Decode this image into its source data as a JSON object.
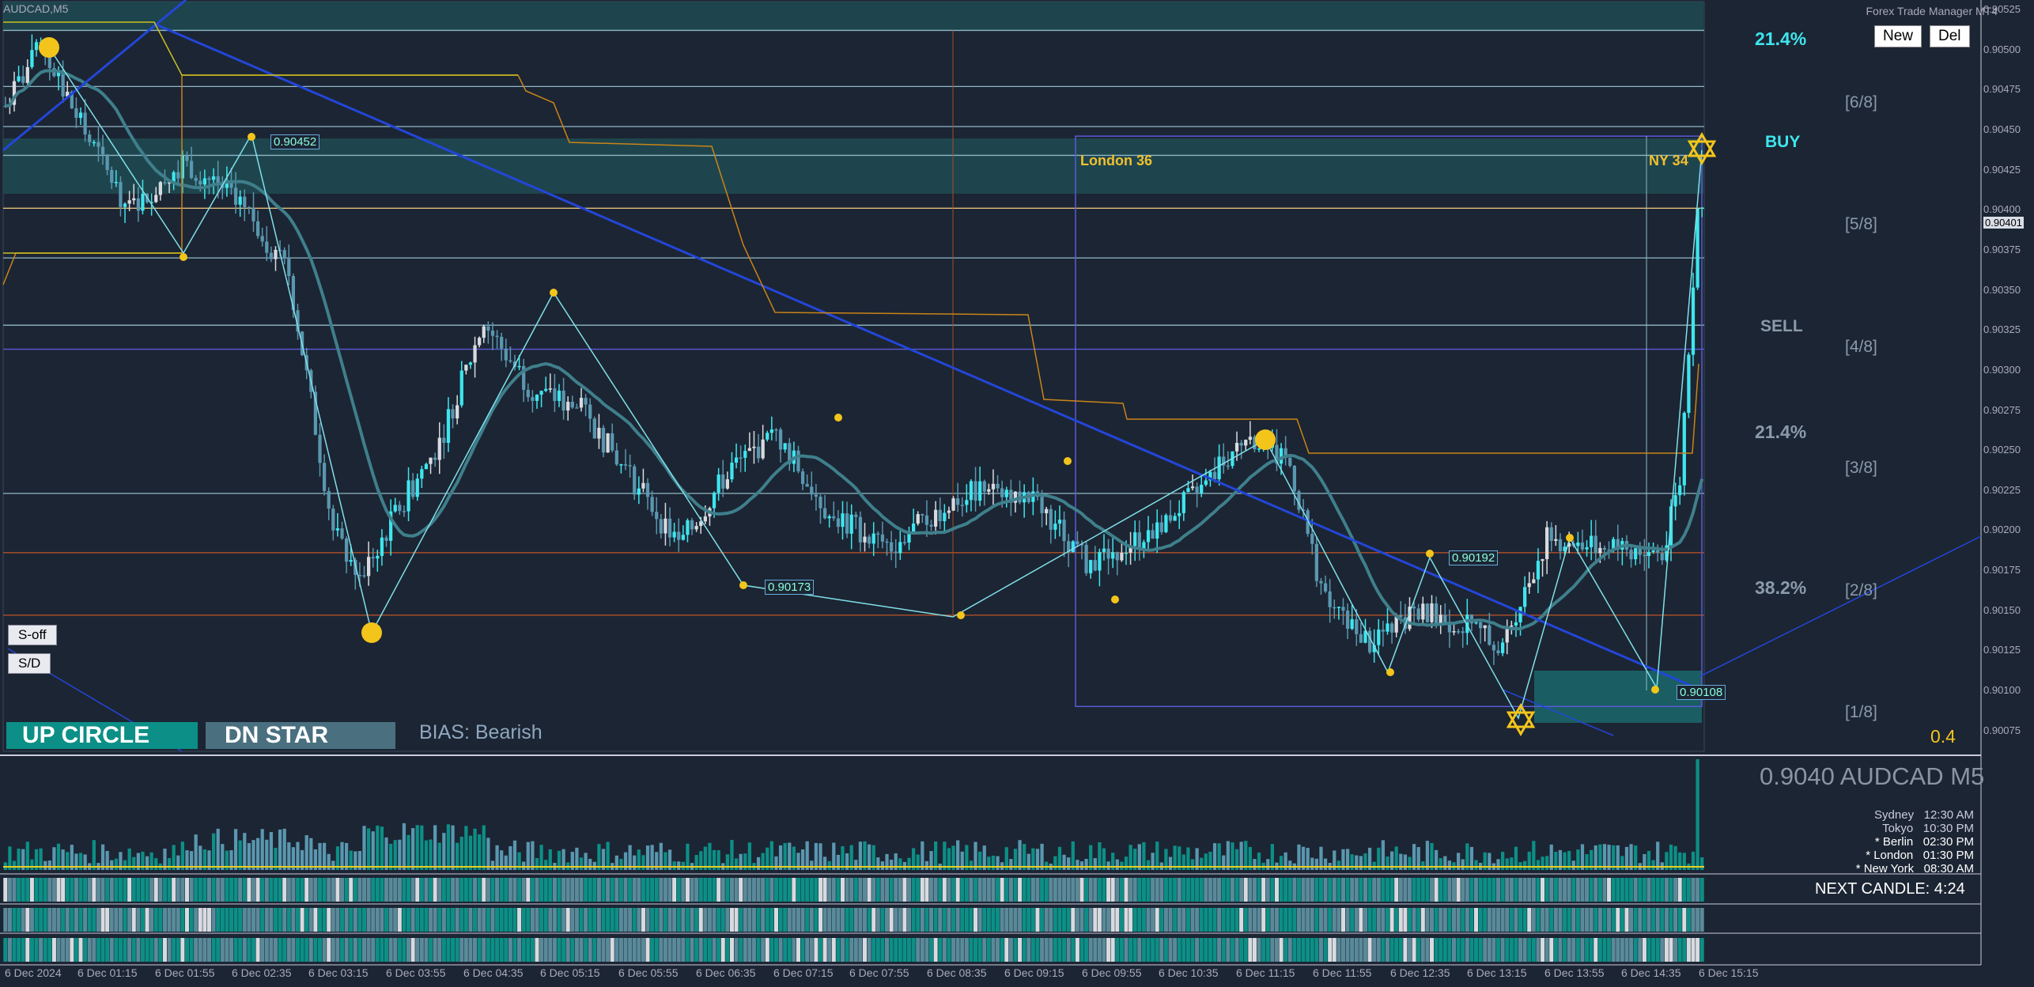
{
  "window": {
    "symbol_title": "AUDCAD,M5",
    "ftm_title": "Forex Trade Manager MT4"
  },
  "buttons": {
    "new": "New",
    "del": "Del",
    "s_off": "S-off",
    "s_d": "S/D"
  },
  "signals": {
    "up": "UP CIRCLE",
    "dn": "DN STAR",
    "bias": "BIAS: Bearish"
  },
  "sessions": {
    "london": "London 36",
    "ny": "NY 34"
  },
  "zones": {
    "pct_top": "21.4%",
    "buy": "BUY",
    "sell": "SELL",
    "pct_mid": "21.4%",
    "pct_low": "38.2%",
    "ratio": "0.4"
  },
  "fib_levels": [
    "[6/8]",
    "[5/8]",
    "[4/8]",
    "[3/8]",
    "[2/8]",
    "[1/8]"
  ],
  "price_tags": [
    "0.90452",
    "0.90173",
    "0.90192",
    "0.90108"
  ],
  "info": {
    "price_symbol": "0.9040 AUDCAD M5",
    "next_candle": "NEXT CANDLE: 4:24",
    "timezones": [
      {
        "city": "Sydney",
        "time": "12:30 AM"
      },
      {
        "city": "Tokyo",
        "time": "10:30 PM"
      },
      {
        "city": "* Berlin",
        "time": "02:30 PM"
      },
      {
        "city": "* London",
        "time": "01:30 PM"
      },
      {
        "city": "* New York",
        "time": "08:30 AM"
      }
    ]
  },
  "current_price": "0.90401",
  "colors": {
    "bull": "#3ee6ee",
    "bear": "#5a97b0",
    "white_candle": "#d7dbe0",
    "ma": "#3f7f8c",
    "trend": "#2346d8",
    "gold": "#f3c51b",
    "orange": "#c98418",
    "zone": "#1f4d54",
    "accent": "#0c8f86"
  },
  "chart_data": {
    "type": "candlestick",
    "symbol": "AUDCAD",
    "timeframe": "M5",
    "y_ticks": [
      "0.90525",
      "0.90500",
      "0.90475",
      "0.90450",
      "0.90425",
      "0.90400",
      "0.90375",
      "0.90350",
      "0.90325",
      "0.90300",
      "0.90275",
      "0.90250",
      "0.90225",
      "0.90200",
      "0.90175",
      "0.90150",
      "0.90125",
      "0.90100",
      "0.90075"
    ],
    "ylim": [
      0.90062,
      0.9053
    ],
    "x_ticks": [
      "6 Dec 2024",
      "6 Dec 01:15",
      "6 Dec 01:55",
      "6 Dec 02:35",
      "6 Dec 03:15",
      "6 Dec 03:55",
      "6 Dec 04:35",
      "6 Dec 05:15",
      "6 Dec 05:55",
      "6 Dec 06:35",
      "6 Dec 07:15",
      "6 Dec 07:55",
      "6 Dec 08:35",
      "6 Dec 09:15",
      "6 Dec 09:55",
      "6 Dec 10:35",
      "6 Dec 11:15",
      "6 Dec 11:55",
      "6 Dec 12:35",
      "6 Dec 13:15",
      "6 Dec 13:55",
      "6 Dec 14:35",
      "6 Dec 15:15"
    ],
    "close_path": [
      [
        0,
        0.90465
      ],
      [
        8,
        0.90502
      ],
      [
        18,
        0.90448
      ],
      [
        28,
        0.904
      ],
      [
        40,
        0.9043
      ],
      [
        52,
        0.9041
      ],
      [
        64,
        0.9036
      ],
      [
        74,
        0.902
      ],
      [
        80,
        0.9017
      ],
      [
        88,
        0.9021
      ],
      [
        98,
        0.90255
      ],
      [
        108,
        0.9033
      ],
      [
        118,
        0.9029
      ],
      [
        130,
        0.90275
      ],
      [
        142,
        0.9023
      ],
      [
        152,
        0.9019
      ],
      [
        164,
        0.9024
      ],
      [
        174,
        0.9026
      ],
      [
        186,
        0.9021
      ],
      [
        200,
        0.9019
      ],
      [
        212,
        0.90215
      ],
      [
        222,
        0.9023
      ],
      [
        234,
        0.90215
      ],
      [
        244,
        0.9018
      ],
      [
        256,
        0.90195
      ],
      [
        270,
        0.90225
      ],
      [
        280,
        0.9026
      ],
      [
        290,
        0.9024
      ],
      [
        298,
        0.90155
      ],
      [
        308,
        0.9013
      ],
      [
        318,
        0.9015
      ],
      [
        330,
        0.9014
      ],
      [
        338,
        0.9013
      ],
      [
        348,
        0.90195
      ],
      [
        362,
        0.9019
      ],
      [
        374,
        0.90185
      ],
      [
        378,
        0.9023
      ],
      [
        382,
        0.904
      ]
    ]
  }
}
